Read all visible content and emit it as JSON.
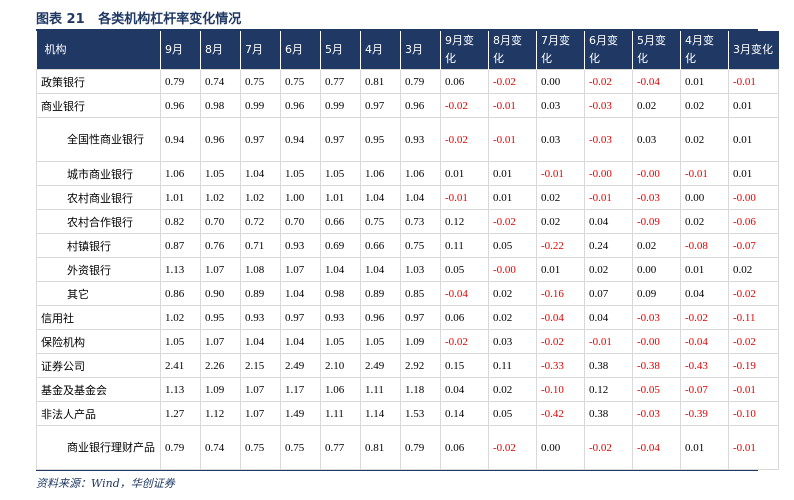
{
  "title": "图表 21   各类机构杠杆率变化情况",
  "source": "资料来源：Wind，华创证券",
  "table": {
    "headers": [
      "机构",
      "9月",
      "8月",
      "7月",
      "6月",
      "5月",
      "4月",
      "3月",
      "9月变化",
      "8月变化",
      "7月变化",
      "6月变化",
      "5月变化",
      "4月变化",
      "3月变化"
    ],
    "rows": [
      {
        "name": "政策银行",
        "values": [
          "0.79",
          "0.74",
          "0.75",
          "0.75",
          "0.77",
          "0.81",
          "0.79",
          "0.06",
          "-0.02",
          "0.00",
          "-0.02",
          "-0.04",
          "0.01",
          "-0.01"
        ]
      },
      {
        "name": "商业银行",
        "values": [
          "0.96",
          "0.98",
          "0.99",
          "0.96",
          "0.99",
          "0.97",
          "0.96",
          "-0.02",
          "-0.01",
          "0.03",
          "-0.03",
          "0.02",
          "0.02",
          "0.01"
        ]
      },
      {
        "name": "全国性商业银行",
        "values": [
          "0.94",
          "0.96",
          "0.97",
          "0.94",
          "0.97",
          "0.95",
          "0.93",
          "-0.02",
          "-0.01",
          "0.03",
          "-0.03",
          "0.03",
          "0.02",
          "0.01"
        ]
      },
      {
        "name": "城市商业银行",
        "values": [
          "1.06",
          "1.05",
          "1.04",
          "1.05",
          "1.05",
          "1.06",
          "1.06",
          "0.01",
          "0.01",
          "-0.01",
          "-0.00",
          "-0.00",
          "-0.01",
          "0.01"
        ]
      },
      {
        "name": "农村商业银行",
        "values": [
          "1.01",
          "1.02",
          "1.02",
          "1.00",
          "1.01",
          "1.04",
          "1.04",
          "-0.01",
          "0.01",
          "0.02",
          "-0.01",
          "-0.03",
          "0.00",
          "-0.00"
        ]
      },
      {
        "name": "农村合作银行",
        "values": [
          "0.82",
          "0.70",
          "0.72",
          "0.70",
          "0.66",
          "0.75",
          "0.73",
          "0.12",
          "-0.02",
          "0.02",
          "0.04",
          "-0.09",
          "0.02",
          "-0.06"
        ]
      },
      {
        "name": "村镇银行",
        "values": [
          "0.87",
          "0.76",
          "0.71",
          "0.93",
          "0.69",
          "0.66",
          "0.75",
          "0.11",
          "0.05",
          "-0.22",
          "0.24",
          "0.02",
          "-0.08",
          "-0.07"
        ]
      },
      {
        "name": "外资银行",
        "values": [
          "1.13",
          "1.07",
          "1.08",
          "1.07",
          "1.04",
          "1.04",
          "1.03",
          "0.05",
          "-0.00",
          "0.01",
          "0.02",
          "0.00",
          "0.01",
          "0.02"
        ]
      },
      {
        "name": "其它",
        "values": [
          "0.86",
          "0.90",
          "0.89",
          "1.04",
          "0.98",
          "0.89",
          "0.85",
          "-0.04",
          "0.02",
          "-0.16",
          "0.07",
          "0.09",
          "0.04",
          "-0.02"
        ]
      },
      {
        "name": "信用社",
        "values": [
          "1.02",
          "0.95",
          "0.93",
          "0.97",
          "0.93",
          "0.96",
          "0.97",
          "0.06",
          "0.02",
          "-0.04",
          "0.04",
          "-0.03",
          "-0.02",
          "-0.11"
        ]
      },
      {
        "name": "保险机构",
        "values": [
          "1.05",
          "1.07",
          "1.04",
          "1.04",
          "1.05",
          "1.05",
          "1.09",
          "-0.02",
          "0.03",
          "-0.02",
          "-0.01",
          "-0.00",
          "-0.04",
          "-0.02"
        ]
      },
      {
        "name": "证券公司",
        "values": [
          "2.41",
          "2.26",
          "2.15",
          "2.49",
          "2.10",
          "2.49",
          "2.92",
          "0.15",
          "0.11",
          "-0.33",
          "0.38",
          "-0.38",
          "-0.43",
          "-0.19"
        ]
      },
      {
        "name": "基金及基金会",
        "values": [
          "1.13",
          "1.09",
          "1.07",
          "1.17",
          "1.06",
          "1.11",
          "1.18",
          "0.04",
          "0.02",
          "-0.10",
          "0.12",
          "-0.05",
          "-0.07",
          "-0.01"
        ]
      },
      {
        "name": "非法人产品",
        "values": [
          "1.27",
          "1.12",
          "1.07",
          "1.49",
          "1.11",
          "1.14",
          "1.53",
          "0.14",
          "0.05",
          "-0.42",
          "0.38",
          "-0.03",
          "-0.39",
          "-0.10"
        ]
      },
      {
        "name": "商业银行理财产品",
        "values": [
          "0.79",
          "0.74",
          "0.75",
          "0.75",
          "0.77",
          "0.81",
          "0.79",
          "0.06",
          "-0.02",
          "0.00",
          "-0.02",
          "-0.04",
          "0.01",
          "-0.01"
        ]
      }
    ]
  }
}
